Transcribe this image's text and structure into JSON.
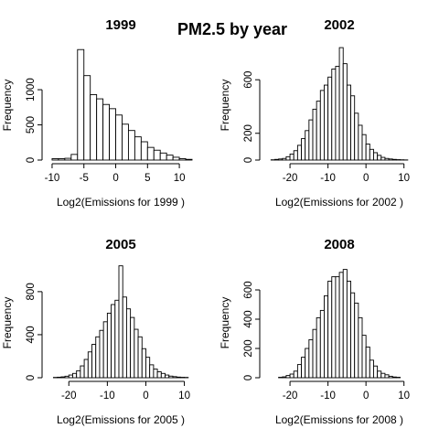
{
  "title": "PM2.5 by year",
  "chart_data": [
    {
      "type": "bar",
      "title": "1999",
      "xlabel": "Log2(Emissions for  1999 )",
      "ylabel": "Frequency",
      "xlim": [
        -11,
        12
      ],
      "ylim": [
        0,
        1560
      ],
      "xticks": [
        -10,
        -5,
        0,
        5,
        10
      ],
      "yticks": [
        0,
        500,
        1000
      ],
      "bin_start": -10,
      "bin_width": 1,
      "values": [
        20,
        20,
        25,
        80,
        1570,
        1200,
        930,
        870,
        790,
        730,
        640,
        510,
        420,
        330,
        260,
        180,
        140,
        100,
        70,
        40,
        20,
        10
      ]
    },
    {
      "type": "bar",
      "title": "2002",
      "xlabel": "Log2(Emissions for  2002 )",
      "ylabel": "Frequency",
      "xlim": [
        -27,
        12
      ],
      "ylim": [
        0,
        820
      ],
      "xticks": [
        -20,
        -10,
        0,
        10
      ],
      "yticks": [
        0,
        200,
        600
      ],
      "bin_start": -25,
      "bin_width": 1,
      "values": [
        2,
        5,
        8,
        12,
        25,
        45,
        70,
        110,
        160,
        220,
        300,
        380,
        440,
        520,
        560,
        620,
        680,
        700,
        840,
        720,
        560,
        480,
        350,
        260,
        190,
        120,
        80,
        55,
        35,
        20,
        12,
        8,
        5,
        3,
        2,
        1
      ]
    },
    {
      "type": "bar",
      "title": "2005",
      "xlabel": "Log2(Emissions for  2005 )",
      "ylabel": "Frequency",
      "xlim": [
        -26,
        12
      ],
      "ylim": [
        0,
        1020
      ],
      "xticks": [
        -20,
        -10,
        0,
        10
      ],
      "yticks": [
        0,
        400,
        800
      ],
      "bin_start": -24,
      "bin_width": 1,
      "values": [
        3,
        5,
        8,
        14,
        25,
        40,
        65,
        110,
        170,
        240,
        310,
        380,
        440,
        520,
        600,
        680,
        720,
        1040,
        750,
        640,
        560,
        450,
        380,
        270,
        190,
        120,
        80,
        55,
        40,
        25,
        15,
        10,
        6,
        4,
        3
      ]
    },
    {
      "type": "bar",
      "title": "2008",
      "xlabel": "Log2(Emissions for  2008 )",
      "ylabel": "Frequency",
      "xlim": [
        -27,
        12
      ],
      "ylim": [
        0,
        750
      ],
      "xticks": [
        -20,
        -10,
        0,
        10
      ],
      "yticks": [
        0,
        200,
        400,
        600
      ],
      "bin_start": -23,
      "bin_width": 1,
      "values": [
        3,
        6,
        15,
        25,
        45,
        90,
        140,
        200,
        260,
        330,
        410,
        460,
        560,
        660,
        690,
        690,
        720,
        740,
        660,
        580,
        510,
        410,
        290,
        210,
        120,
        80,
        45,
        30,
        20,
        10,
        5,
        3
      ]
    }
  ]
}
